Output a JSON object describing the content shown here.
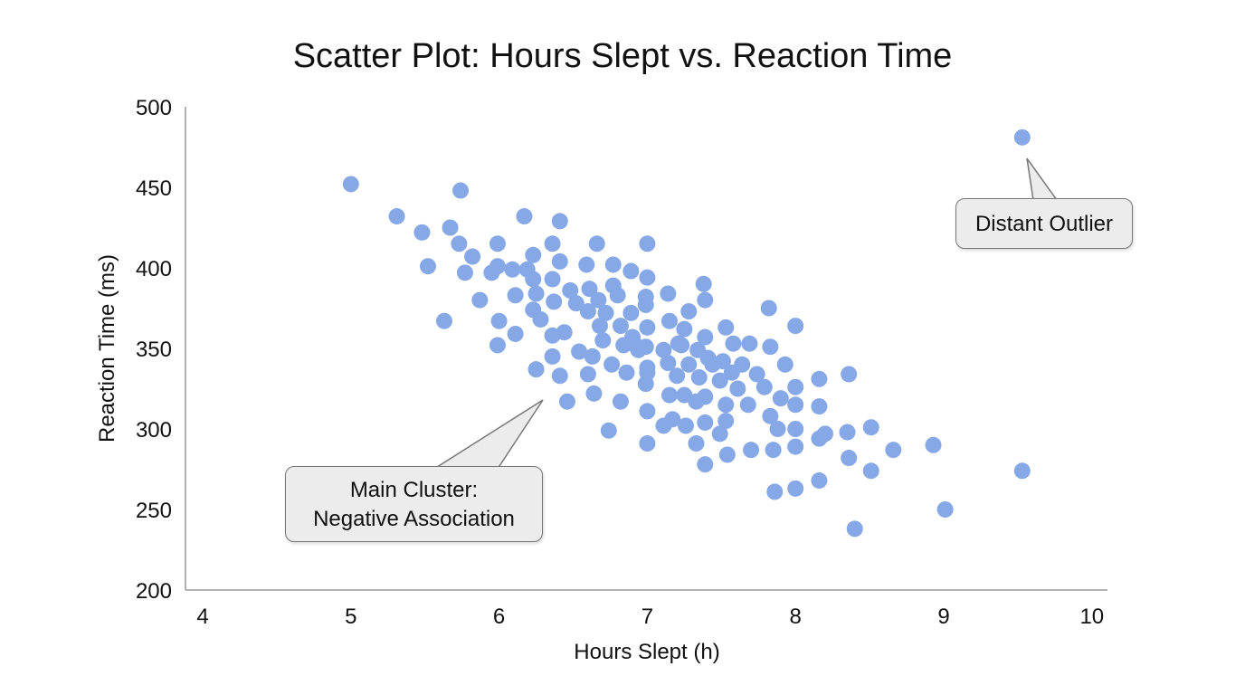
{
  "chart_data": {
    "type": "scatter",
    "title": "Scatter Plot: Hours Slept vs. Reaction Time",
    "xlabel": "Hours Slept (h)",
    "ylabel": "Reaction Time (ms)",
    "xlim": [
      4,
      10
    ],
    "ylim": [
      200,
      500
    ],
    "xticks": [
      "4",
      "5",
      "6",
      "7",
      "8",
      "9",
      "10"
    ],
    "yticks": [
      "200",
      "250",
      "300",
      "350",
      "400",
      "450",
      "500"
    ],
    "grid": false,
    "color": "#86a8e7",
    "points": [
      [
        5.0,
        452
      ],
      [
        5.31,
        432
      ],
      [
        5.48,
        422
      ],
      [
        5.52,
        401
      ],
      [
        5.67,
        425
      ],
      [
        5.74,
        448
      ],
      [
        5.73,
        415
      ],
      [
        5.77,
        397
      ],
      [
        5.82,
        407
      ],
      [
        5.63,
        367
      ],
      [
        5.87,
        380
      ],
      [
        5.95,
        397
      ],
      [
        5.99,
        415
      ],
      [
        5.99,
        401
      ],
      [
        6.0,
        367
      ],
      [
        5.99,
        352
      ],
      [
        6.11,
        383
      ],
      [
        6.11,
        359
      ],
      [
        6.09,
        399
      ],
      [
        6.17,
        432
      ],
      [
        6.19,
        399
      ],
      [
        6.23,
        408
      ],
      [
        6.23,
        393
      ],
      [
        6.25,
        384
      ],
      [
        6.23,
        374
      ],
      [
        6.28,
        368
      ],
      [
        6.25,
        337
      ],
      [
        6.36,
        415
      ],
      [
        6.36,
        393
      ],
      [
        6.37,
        379
      ],
      [
        6.36,
        358
      ],
      [
        6.36,
        345
      ],
      [
        6.41,
        429
      ],
      [
        6.41,
        404
      ],
      [
        6.41,
        333
      ],
      [
        6.44,
        360
      ],
      [
        6.46,
        317
      ],
      [
        6.48,
        386
      ],
      [
        6.52,
        378
      ],
      [
        6.54,
        348
      ],
      [
        6.59,
        402
      ],
      [
        6.61,
        387
      ],
      [
        6.6,
        373
      ],
      [
        6.6,
        334
      ],
      [
        6.63,
        345
      ],
      [
        6.66,
        415
      ],
      [
        6.64,
        322
      ],
      [
        6.67,
        380
      ],
      [
        6.68,
        364
      ],
      [
        6.72,
        372
      ],
      [
        6.7,
        355
      ],
      [
        6.74,
        299
      ],
      [
        6.77,
        402
      ],
      [
        6.77,
        389
      ],
      [
        6.76,
        340
      ],
      [
        6.8,
        383
      ],
      [
        6.82,
        317
      ],
      [
        6.82,
        364
      ],
      [
        6.84,
        352
      ],
      [
        6.86,
        335
      ],
      [
        6.89,
        398
      ],
      [
        6.89,
        372
      ],
      [
        6.9,
        357
      ],
      [
        6.92,
        352
      ],
      [
        6.94,
        349
      ],
      [
        7.0,
        415
      ],
      [
        7.0,
        394
      ],
      [
        6.99,
        382
      ],
      [
        6.99,
        377
      ],
      [
        7.0,
        363
      ],
      [
        6.99,
        351
      ],
      [
        7.0,
        338
      ],
      [
        7.0,
        335
      ],
      [
        6.99,
        328
      ],
      [
        7.0,
        311
      ],
      [
        7.0,
        291
      ],
      [
        7.11,
        349
      ],
      [
        7.14,
        384
      ],
      [
        7.15,
        367
      ],
      [
        7.14,
        341
      ],
      [
        7.11,
        302
      ],
      [
        7.15,
        321
      ],
      [
        7.17,
        306
      ],
      [
        7.2,
        333
      ],
      [
        7.21,
        353
      ],
      [
        7.23,
        352
      ],
      [
        7.25,
        362
      ],
      [
        7.25,
        321
      ],
      [
        7.26,
        302
      ],
      [
        7.28,
        373
      ],
      [
        7.28,
        340
      ],
      [
        7.33,
        291
      ],
      [
        7.33,
        317
      ],
      [
        7.34,
        349
      ],
      [
        7.35,
        332
      ],
      [
        7.38,
        390
      ],
      [
        7.39,
        380
      ],
      [
        7.39,
        357
      ],
      [
        7.39,
        304
      ],
      [
        7.39,
        278
      ],
      [
        7.39,
        320
      ],
      [
        7.41,
        344
      ],
      [
        7.44,
        340
      ],
      [
        7.49,
        330
      ],
      [
        7.51,
        342
      ],
      [
        7.49,
        297
      ],
      [
        7.53,
        363
      ],
      [
        7.53,
        315
      ],
      [
        7.53,
        305
      ],
      [
        7.54,
        284
      ],
      [
        7.57,
        335
      ],
      [
        7.58,
        353
      ],
      [
        7.61,
        325
      ],
      [
        7.64,
        340
      ],
      [
        7.68,
        315
      ],
      [
        7.69,
        353
      ],
      [
        7.7,
        287
      ],
      [
        7.74,
        334
      ],
      [
        7.79,
        326
      ],
      [
        7.82,
        375
      ],
      [
        7.83,
        308
      ],
      [
        7.83,
        351
      ],
      [
        7.85,
        287
      ],
      [
        7.86,
        261
      ],
      [
        7.88,
        300
      ],
      [
        7.9,
        319
      ],
      [
        7.93,
        340
      ],
      [
        8.0,
        364
      ],
      [
        8.0,
        326
      ],
      [
        8.0,
        315
      ],
      [
        8.0,
        300
      ],
      [
        8.0,
        289
      ],
      [
        8.0,
        263
      ],
      [
        8.16,
        331
      ],
      [
        8.16,
        314
      ],
      [
        8.16,
        294
      ],
      [
        8.16,
        268
      ],
      [
        8.2,
        297
      ],
      [
        8.35,
        298
      ],
      [
        8.36,
        334
      ],
      [
        8.36,
        282
      ],
      [
        8.4,
        238
      ],
      [
        8.51,
        301
      ],
      [
        8.51,
        274
      ],
      [
        8.66,
        287
      ],
      [
        8.93,
        290
      ],
      [
        9.01,
        250
      ],
      [
        9.53,
        274
      ],
      [
        9.53,
        481
      ]
    ],
    "annotations": [
      {
        "text_lines": [
          "Main Cluster:",
          "Negative Association"
        ],
        "points_to": [
          6.3,
          334
        ]
      },
      {
        "text": "Distant Outlier",
        "points_to": [
          9.53,
          475
        ]
      }
    ]
  }
}
